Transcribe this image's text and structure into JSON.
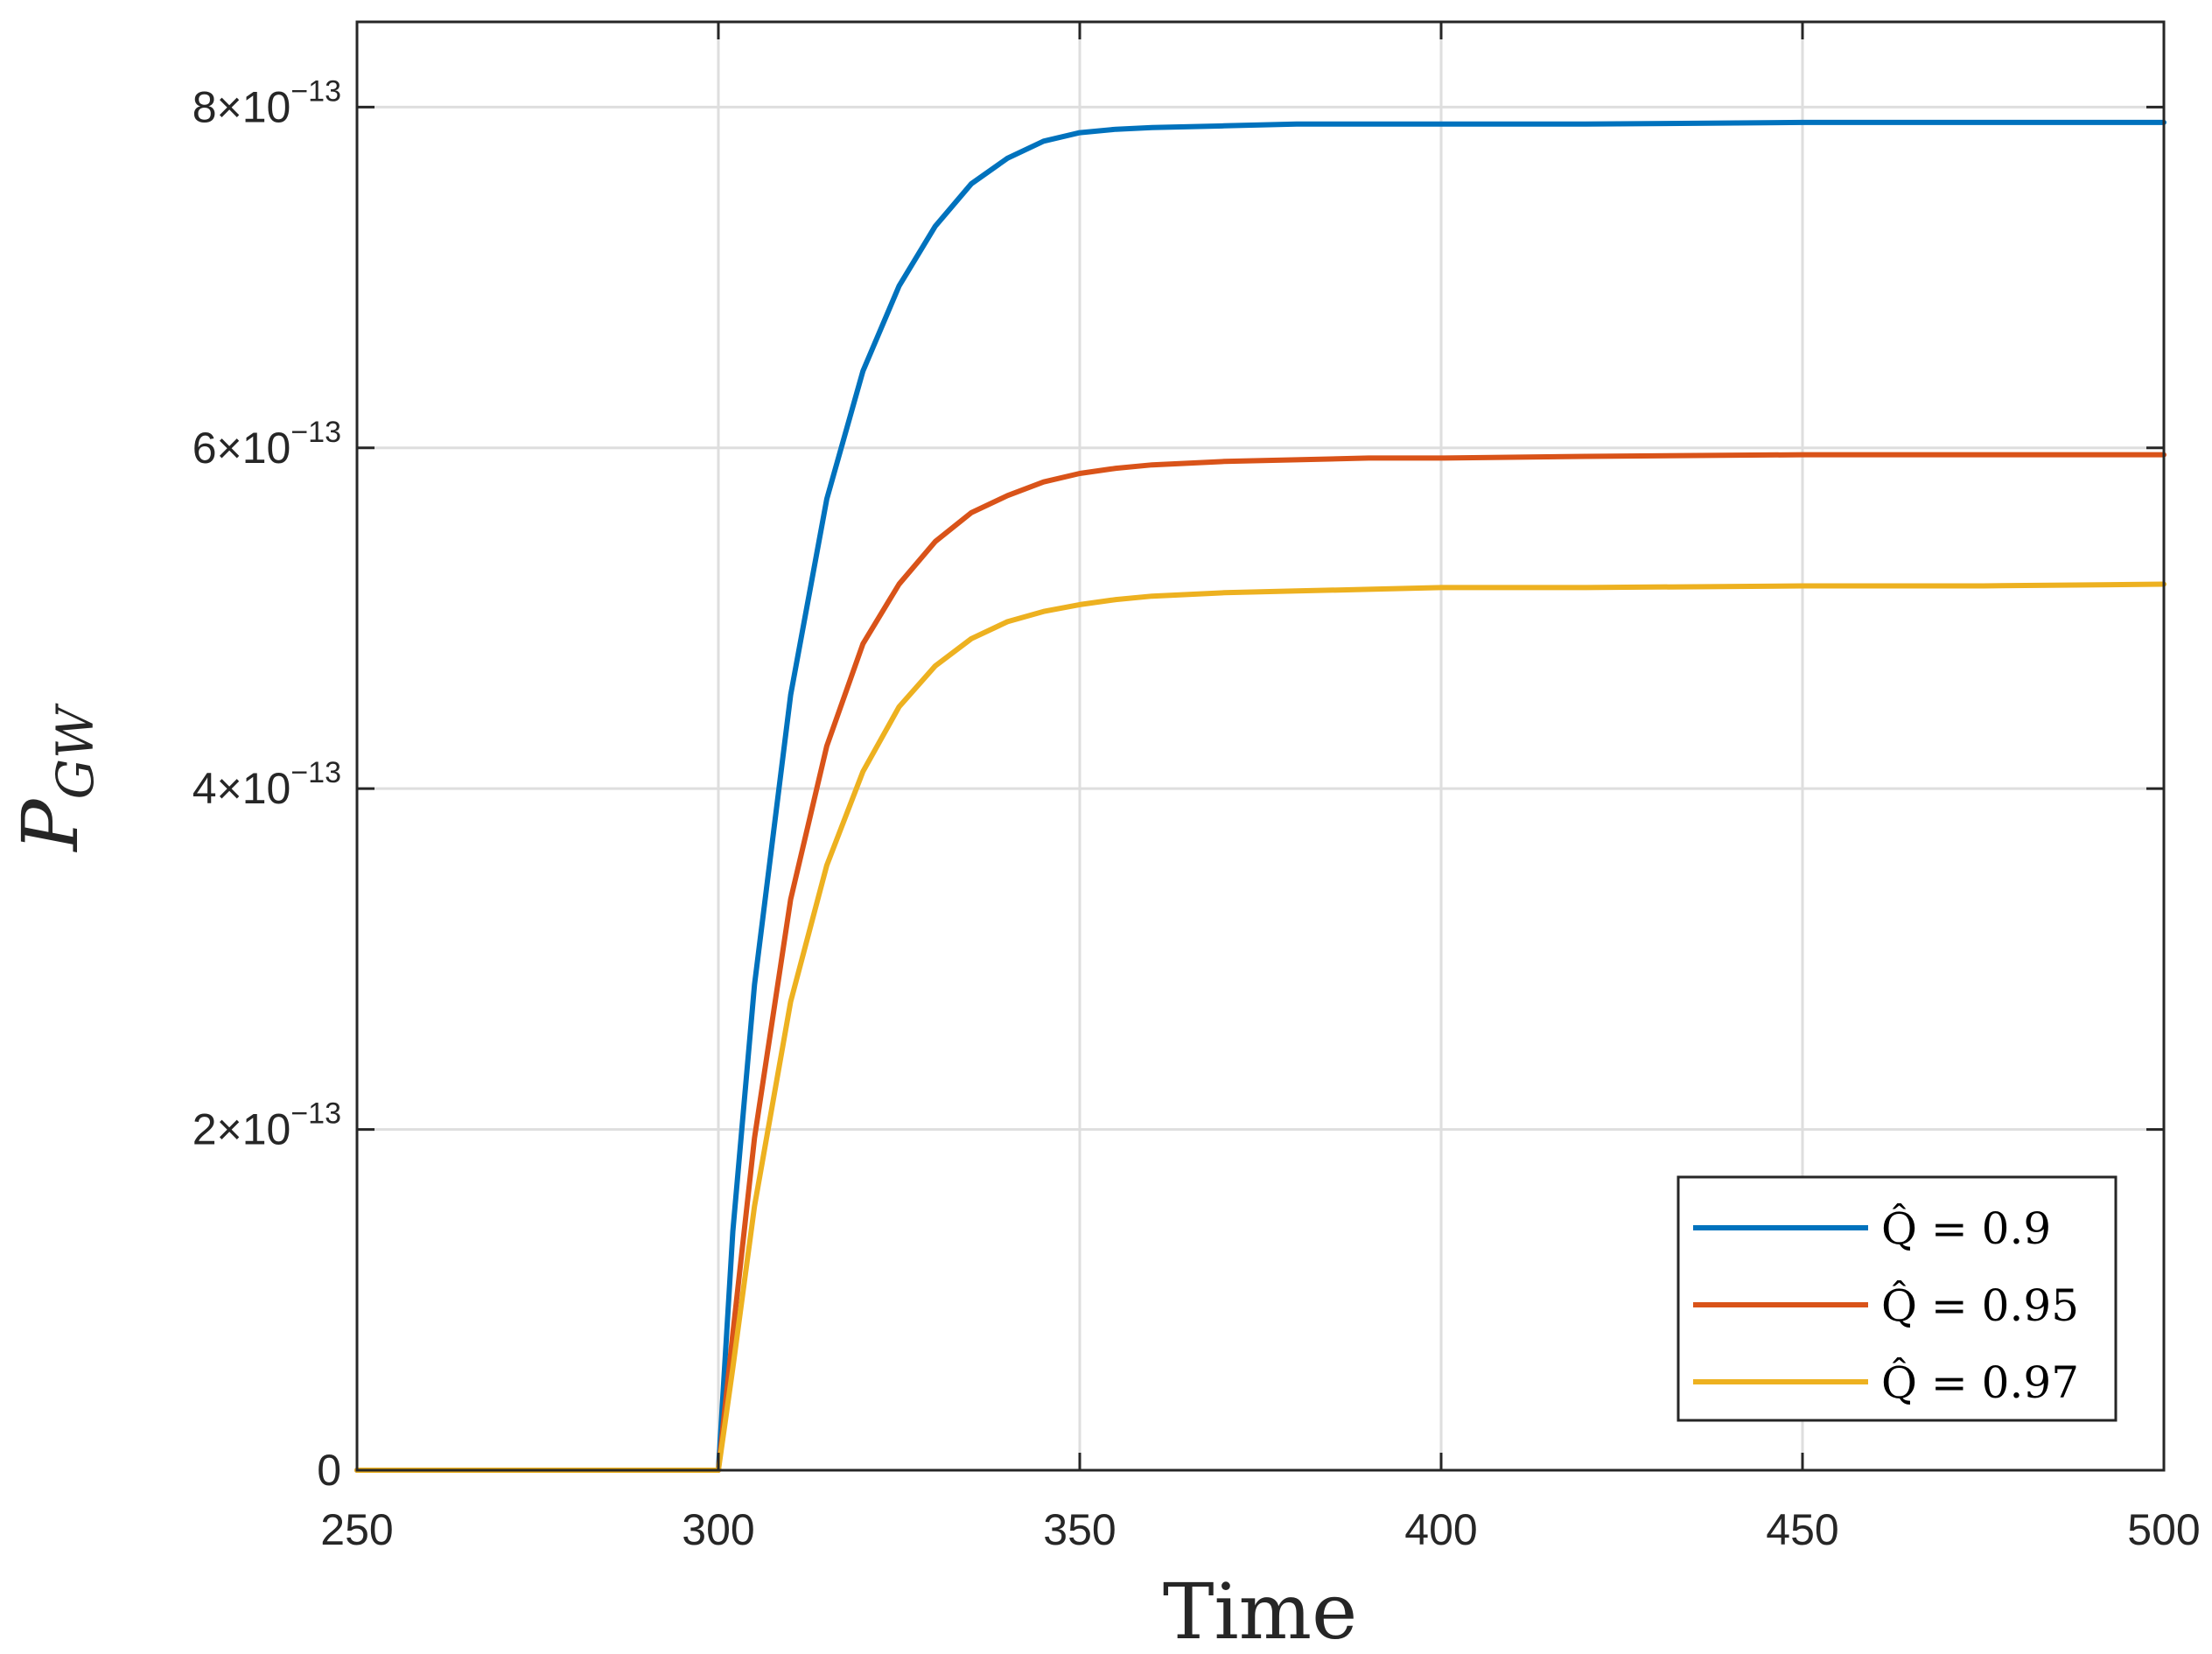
{
  "chart_data": {
    "type": "line",
    "title": "",
    "xlabel": "Time",
    "ylabel": {
      "base": "P",
      "subscript": "GW"
    },
    "xlim": [
      250,
      500
    ],
    "ylim": [
      0,
      8.5e-13
    ],
    "grid": true,
    "legend_position": "bottom-right",
    "x_ticks": [
      250,
      300,
      350,
      400,
      450,
      500
    ],
    "x_tick_labels": [
      "250",
      "300",
      "350",
      "400",
      "450",
      "500"
    ],
    "y_ticks": [
      0,
      2e-13,
      4e-13,
      6e-13,
      8e-13
    ],
    "y_tick_labels": [
      {
        "mantissa": "0",
        "exponent": ""
      },
      {
        "mantissa": "2×10",
        "exponent": "−13"
      },
      {
        "mantissa": "4×10",
        "exponent": "−13"
      },
      {
        "mantissa": "6×10",
        "exponent": "−13"
      },
      {
        "mantissa": "8×10",
        "exponent": "−13"
      }
    ],
    "series": [
      {
        "name": "Q̂ = 0.9",
        "color": "#0072BD",
        "x": [
          250,
          300,
          302,
          305,
          310,
          315,
          320,
          325,
          330,
          335,
          340,
          345,
          350,
          355,
          360,
          370,
          380,
          390,
          400,
          420,
          450,
          475,
          500
        ],
        "y": [
          0,
          0,
          1.4e-13,
          2.85e-13,
          4.55e-13,
          5.7e-13,
          6.45e-13,
          6.95e-13,
          7.3e-13,
          7.55e-13,
          7.7e-13,
          7.8e-13,
          7.85e-13,
          7.87e-13,
          7.88e-13,
          7.89e-13,
          7.9e-13,
          7.9e-13,
          7.9e-13,
          7.9e-13,
          7.91e-13,
          7.91e-13,
          7.91e-13
        ]
      },
      {
        "name": "Q̂ = 0.95",
        "color": "#D95319",
        "x": [
          250,
          300,
          302,
          305,
          310,
          315,
          320,
          325,
          330,
          335,
          340,
          345,
          350,
          355,
          360,
          370,
          380,
          390,
          400,
          420,
          450,
          475,
          500
        ],
        "y": [
          0,
          0,
          8e-14,
          1.95e-13,
          3.35e-13,
          4.25e-13,
          4.85e-13,
          5.2e-13,
          5.45e-13,
          5.62e-13,
          5.72e-13,
          5.8e-13,
          5.85e-13,
          5.88e-13,
          5.9e-13,
          5.92e-13,
          5.93e-13,
          5.94e-13,
          5.94e-13,
          5.95e-13,
          5.96e-13,
          5.96e-13,
          5.96e-13
        ]
      },
      {
        "name": "Q̂ = 0.97",
        "color": "#EDB120",
        "x": [
          250,
          300,
          302,
          305,
          310,
          315,
          320,
          325,
          330,
          335,
          340,
          345,
          350,
          355,
          360,
          370,
          380,
          390,
          400,
          420,
          450,
          475,
          500
        ],
        "y": [
          0,
          0,
          6e-14,
          1.55e-13,
          2.75e-13,
          3.55e-13,
          4.1e-13,
          4.48e-13,
          4.72e-13,
          4.88e-13,
          4.98e-13,
          5.04e-13,
          5.08e-13,
          5.11e-13,
          5.13e-13,
          5.15e-13,
          5.16e-13,
          5.17e-13,
          5.18e-13,
          5.18e-13,
          5.19e-13,
          5.19e-13,
          5.2e-13
        ]
      }
    ]
  }
}
